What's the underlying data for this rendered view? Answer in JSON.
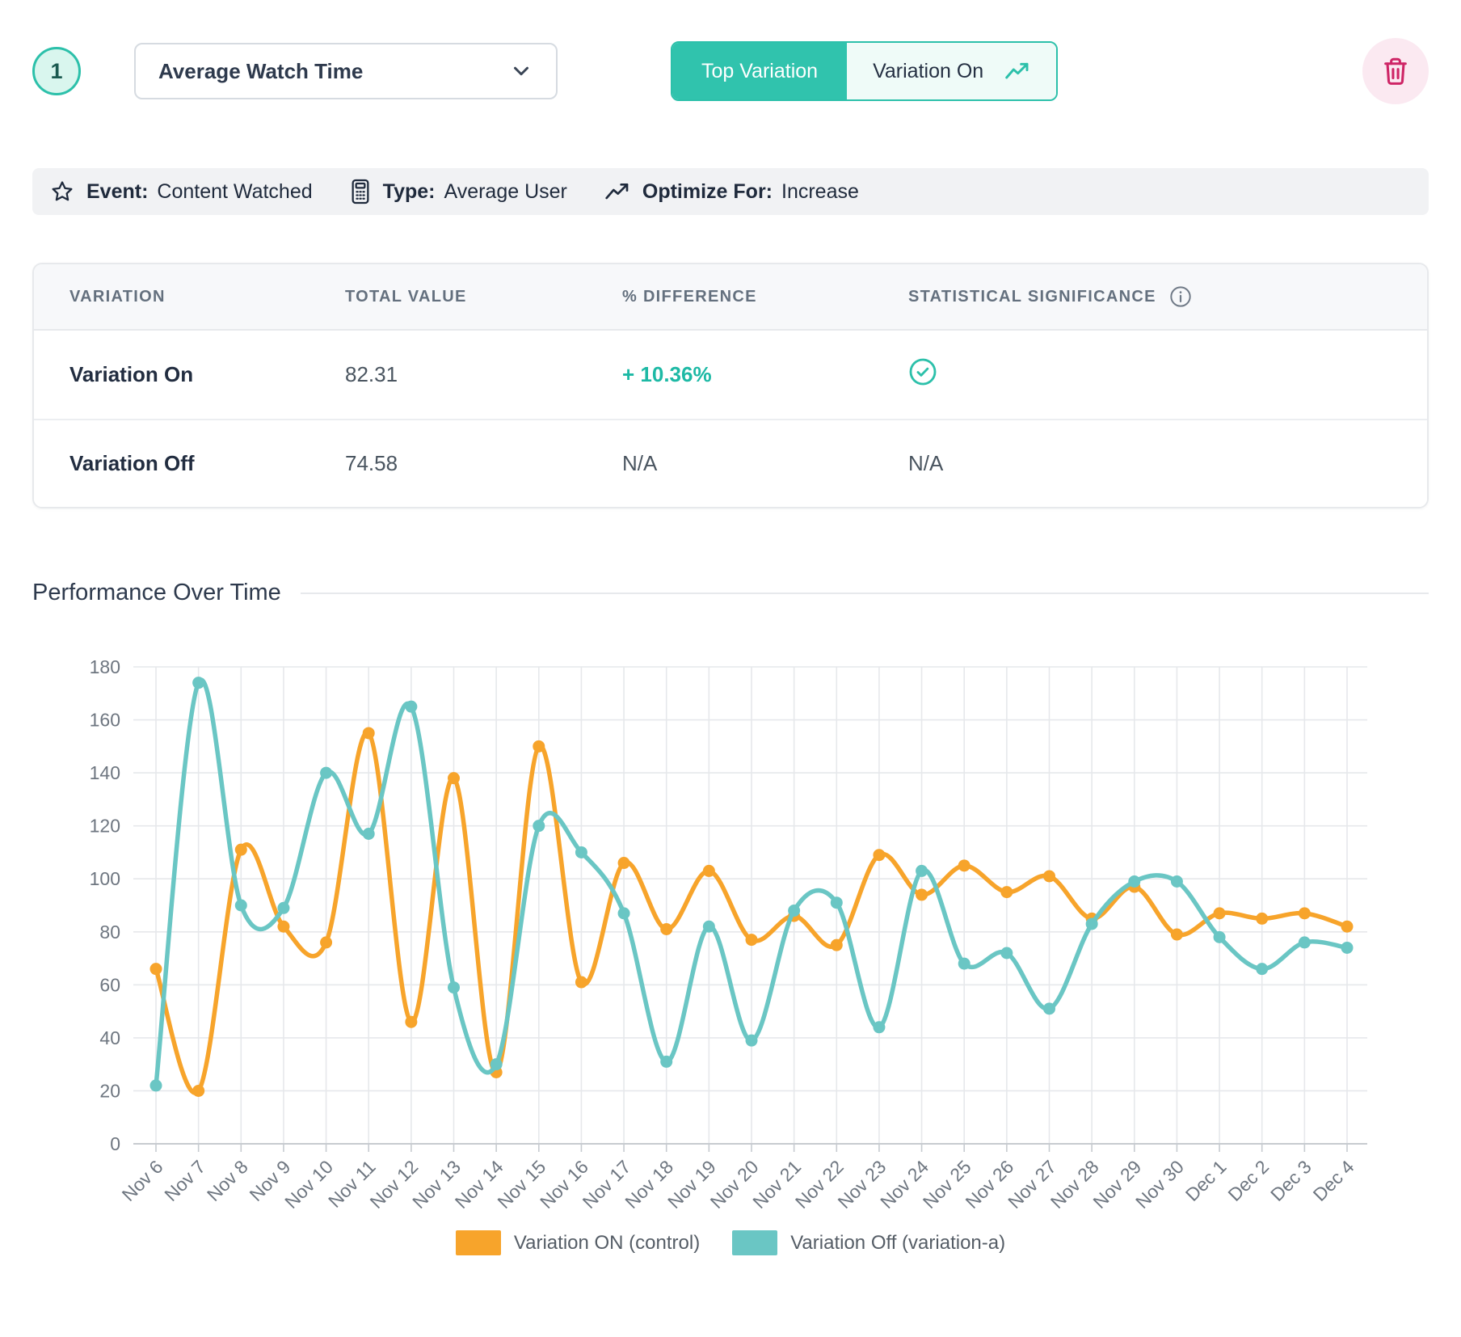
{
  "colors": {
    "accent_teal": "#2cc0aa",
    "accent_teal_bg": "#effbf8",
    "badge_bg": "#d9f6ee",
    "danger_pink": "#ce2566",
    "danger_pink_bg": "#fbe9f1",
    "positive": "#1db9a5",
    "orange_series": "#F7A42B",
    "teal_series": "#6AC6C4",
    "grid": "#e6e8eb",
    "axis": "#c7cbd0",
    "tick_label": "#6e7680"
  },
  "header": {
    "index_badge": "1",
    "metric_dropdown": {
      "value": "Average Watch Time"
    },
    "toggle": {
      "left_label": "Top Variation",
      "right_label": "Variation On"
    }
  },
  "summary_bar": {
    "items": [
      {
        "icon": "star-icon",
        "label": "Event:",
        "value": "Content Watched"
      },
      {
        "icon": "calculator-icon",
        "label": "Type:",
        "value": "Average User"
      },
      {
        "icon": "trend-up-icon",
        "label": "Optimize For:",
        "value": "Increase"
      }
    ]
  },
  "results_table": {
    "columns": [
      "VARIATION",
      "TOTAL VALUE",
      "% DIFFERENCE",
      "STATISTICAL SIGNIFICANCE"
    ],
    "rows": [
      {
        "variation": "Variation On",
        "total_value": "82.31",
        "difference": "+ 10.36%",
        "significance_icon": "check-circle-icon",
        "significance": ""
      },
      {
        "variation": "Variation Off",
        "total_value": "74.58",
        "difference": "N/A",
        "significance_icon": "",
        "significance": "N/A"
      }
    ]
  },
  "section": {
    "title": "Performance Over Time"
  },
  "chart_data": {
    "type": "line",
    "x": [
      "Nov 6",
      "Nov 7",
      "Nov 8",
      "Nov 9",
      "Nov 10",
      "Nov 11",
      "Nov 12",
      "Nov 13",
      "Nov 14",
      "Nov 15",
      "Nov 16",
      "Nov 17",
      "Nov 18",
      "Nov 19",
      "Nov 20",
      "Nov 21",
      "Nov 22",
      "Nov 23",
      "Nov 24",
      "Nov 25",
      "Nov 26",
      "Nov 27",
      "Nov 28",
      "Nov 29",
      "Nov 30",
      "Dec 1",
      "Dec 2",
      "Dec 3",
      "Dec 4"
    ],
    "series": [
      {
        "name": "Variation ON (control)",
        "color": "#F7A42B",
        "values": [
          66,
          20,
          111,
          82,
          76,
          155,
          46,
          138,
          27,
          150,
          61,
          106,
          81,
          103,
          77,
          86,
          75,
          109,
          94,
          105,
          95,
          101,
          85,
          97,
          79,
          87,
          85,
          87,
          82
        ]
      },
      {
        "name": "Variation Off (variation-a)",
        "color": "#6AC6C4",
        "values": [
          22,
          174,
          90,
          89,
          140,
          117,
          165,
          59,
          30,
          120,
          110,
          87,
          31,
          82,
          39,
          88,
          91,
          44,
          103,
          68,
          72,
          51,
          83,
          99,
          99,
          78,
          66,
          76,
          74
        ]
      }
    ],
    "title": "Performance Over Time",
    "xlabel": "",
    "ylabel": "",
    "ylim": [
      0,
      180
    ],
    "ytick_step": 20,
    "grid": true,
    "legend_position": "bottom"
  }
}
